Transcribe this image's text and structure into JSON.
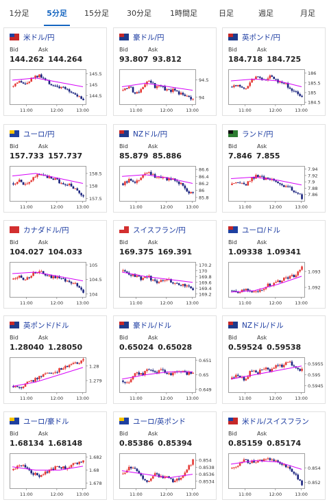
{
  "tabs": [
    {
      "label": "1分足",
      "active": false
    },
    {
      "label": "5分足",
      "active": true
    },
    {
      "label": "15分足",
      "active": false
    },
    {
      "label": "30分足",
      "active": false
    },
    {
      "label": "1時間足",
      "active": false
    },
    {
      "label": "日足",
      "active": false
    },
    {
      "label": "週足",
      "active": false
    },
    {
      "label": "月足",
      "active": false
    }
  ],
  "labels": {
    "bid": "Bid",
    "ask": "Ask"
  },
  "colors": {
    "up": "#e53935",
    "down": "#1a237e",
    "ma": "#d500f9",
    "accent": "#1565c0"
  },
  "cards": [
    {
      "pair": "米ドル/円",
      "flag": {
        "big": "#c62828",
        "small": "#1e40a0"
      },
      "bid": "144.262",
      "ask": "144.264",
      "chart": {
        "xticks": [
          "11:00",
          "12:00",
          "13:00"
        ],
        "yticks": [
          "145.5",
          "145",
          "144.5"
        ],
        "ylim": [
          144.1,
          145.7
        ],
        "trend": [
          144.9,
          145.1,
          145.0,
          145.3,
          145.4,
          145.2,
          145.0,
          144.9,
          144.8,
          144.7,
          144.5,
          144.3
        ],
        "ma": [
          145.2,
          145.3,
          145.1,
          144.9
        ]
      }
    },
    {
      "pair": "豪ドル/円",
      "flag": {
        "big": "#1e3a8a",
        "small": "#c62828"
      },
      "bid": "93.807",
      "ask": "93.812",
      "chart": {
        "xticks": [
          "11:00",
          "12:00",
          "13:00"
        ],
        "yticks": [
          "94.5",
          "94"
        ],
        "ylim": [
          93.8,
          94.8
        ],
        "trend": [
          94.2,
          94.3,
          94.1,
          94.2,
          94.5,
          94.3,
          94.3,
          94.2,
          94.2,
          94.1,
          94.0,
          93.9
        ],
        "ma": [
          94.3,
          94.4,
          94.3,
          94.2
        ]
      }
    },
    {
      "pair": "英ポンド/円",
      "flag": {
        "big": "#1e3a8a",
        "small": "#c62828"
      },
      "bid": "184.718",
      "ask": "184.725",
      "chart": {
        "xticks": [
          "11:00",
          "12:00",
          "13:00"
        ],
        "yticks": [
          "186",
          "185.5",
          "185",
          "184.5"
        ],
        "ylim": [
          184.4,
          186.2
        ],
        "trend": [
          185.3,
          185.4,
          185.2,
          185.6,
          185.8,
          185.7,
          185.8,
          185.6,
          185.5,
          185.3,
          185.0,
          184.7
        ],
        "ma": [
          185.6,
          185.7,
          185.6,
          185.3
        ]
      }
    },
    {
      "pair": "ユーロ/円",
      "flag": {
        "big": "#1e40a0",
        "small": "#f5c400"
      },
      "bid": "157.733",
      "ask": "157.737",
      "chart": {
        "xticks": [
          "11:00",
          "12:00",
          "13:00"
        ],
        "yticks": [
          "158.5",
          "158",
          "157.5"
        ],
        "ylim": [
          157.4,
          158.8
        ],
        "trend": [
          158.1,
          158.2,
          158.0,
          158.3,
          158.5,
          158.4,
          158.3,
          158.2,
          158.1,
          158.0,
          157.8,
          157.6
        ],
        "ma": [
          158.4,
          158.5,
          158.3,
          158.1
        ]
      }
    },
    {
      "pair": "NZドル/円",
      "flag": {
        "big": "#1e3a8a",
        "small": "#c62828"
      },
      "bid": "85.879",
      "ask": "85.886",
      "chart": {
        "xticks": [
          "11:00",
          "12:00",
          "13:00"
        ],
        "yticks": [
          "86.6",
          "86.4",
          "86.2",
          "86",
          "85.8"
        ],
        "ylim": [
          85.7,
          86.7
        ],
        "trend": [
          86.2,
          86.3,
          86.2,
          86.4,
          86.5,
          86.4,
          86.4,
          86.3,
          86.3,
          86.2,
          86.0,
          85.9
        ],
        "ma": [
          86.4,
          86.45,
          86.35,
          86.2
        ]
      }
    },
    {
      "pair": "ランド/円",
      "flag": {
        "big": "#2e7d32",
        "small": "#111111"
      },
      "bid": "7.846",
      "ask": "7.855",
      "chart": {
        "xticks": [
          "11:00",
          "12:00",
          "13:00"
        ],
        "yticks": [
          "7.94",
          "7.92",
          "7.9",
          "7.88",
          "7.86"
        ],
        "ylim": [
          7.84,
          7.95
        ],
        "trend": [
          7.89,
          7.9,
          7.89,
          7.91,
          7.92,
          7.91,
          7.91,
          7.9,
          7.89,
          7.88,
          7.87,
          7.85
        ],
        "ma": [
          7.91,
          7.915,
          7.905,
          7.89
        ]
      }
    },
    {
      "pair": "カナダドル/円",
      "flag": {
        "big": "#d32f2f",
        "small": "#d32f2f"
      },
      "bid": "104.027",
      "ask": "104.033",
      "chart": {
        "xticks": [
          "11:00",
          "12:00",
          "13:00"
        ],
        "yticks": [
          "105",
          "104.5",
          "104"
        ],
        "ylim": [
          103.9,
          105.1
        ],
        "trend": [
          104.5,
          104.6,
          104.5,
          104.7,
          104.8,
          104.7,
          104.6,
          104.6,
          104.5,
          104.4,
          104.3,
          104.1
        ],
        "ma": [
          104.7,
          104.75,
          104.6,
          104.45
        ]
      }
    },
    {
      "pair": "スイスフラン/円",
      "flag": {
        "big": "#d32f2f",
        "small": "#ffffff"
      },
      "bid": "169.375",
      "ask": "169.391",
      "chart": {
        "xticks": [
          "11:00",
          "12:00",
          "13:00"
        ],
        "yticks": [
          "170.2",
          "170",
          "169.8",
          "169.6",
          "169.4",
          "169.2"
        ],
        "ylim": [
          169.1,
          170.3
        ],
        "trend": [
          170.0,
          169.9,
          169.8,
          169.7,
          169.8,
          169.6,
          169.7,
          169.7,
          169.6,
          169.5,
          169.5,
          169.3
        ],
        "ma": [
          169.95,
          169.8,
          169.7,
          169.6
        ]
      }
    },
    {
      "pair": "ユーロ/ドル",
      "flag": {
        "big": "#1e40a0",
        "small": "#c62828"
      },
      "bid": "1.09338",
      "ask": "1.09341",
      "chart": {
        "xticks": [
          "11:00",
          "12:00",
          "13:00"
        ],
        "yticks": [
          "1.093",
          "1.092"
        ],
        "ylim": [
          1.0914,
          1.0936
        ],
        "trend": [
          1.0918,
          1.0917,
          1.0919,
          1.0918,
          1.0917,
          1.092,
          1.0922,
          1.0923,
          1.0925,
          1.0926,
          1.0928,
          1.0934
        ],
        "ma": [
          1.0917,
          1.0918,
          1.0922,
          1.0927
        ]
      }
    },
    {
      "pair": "英ポンド/ドル",
      "flag": {
        "big": "#1e3a8a",
        "small": "#c62828"
      },
      "bid": "1.28040",
      "ask": "1.28050",
      "chart": {
        "xticks": [
          "11:00",
          "12:00",
          "13:00"
        ],
        "yticks": [
          "1.28",
          "1.279"
        ],
        "ylim": [
          1.2782,
          1.2806
        ],
        "trend": [
          1.2786,
          1.2785,
          1.2788,
          1.279,
          1.2792,
          1.2795,
          1.2794,
          1.2797,
          1.2799,
          1.28,
          1.2802,
          1.2804
        ],
        "ma": [
          1.2786,
          1.2789,
          1.2794,
          1.2799
        ]
      }
    },
    {
      "pair": "豪ドル/ドル",
      "flag": {
        "big": "#1e3a8a",
        "small": "#c62828"
      },
      "bid": "0.65024",
      "ask": "0.65028",
      "chart": {
        "xticks": [
          "11:00",
          "12:00",
          "13:00"
        ],
        "yticks": [
          "0.651",
          "0.65",
          "0.649"
        ],
        "ylim": [
          0.6488,
          0.6512
        ],
        "trend": [
          0.6496,
          0.6494,
          0.6502,
          0.65,
          0.6504,
          0.6502,
          0.6503,
          0.65,
          0.6501,
          0.6502,
          0.6501,
          0.6502
        ],
        "ma": [
          0.6497,
          0.65,
          0.6502,
          0.6502
        ]
      }
    },
    {
      "pair": "NZドル/ドル",
      "flag": {
        "big": "#1e3a8a",
        "small": "#c62828"
      },
      "bid": "0.59524",
      "ask": "0.59538",
      "chart": {
        "xticks": [
          "11:00",
          "12:00",
          "13:00"
        ],
        "yticks": [
          "0.5955",
          "0.595",
          "0.5945"
        ],
        "ylim": [
          0.5942,
          0.5958
        ],
        "trend": [
          0.5948,
          0.595,
          0.5947,
          0.5952,
          0.5951,
          0.5953,
          0.5952,
          0.5955,
          0.5954,
          0.5956,
          0.5953,
          0.5952
        ],
        "ma": [
          0.5948,
          0.595,
          0.5952,
          0.5954
        ]
      }
    },
    {
      "pair": "ユーロ/豪ドル",
      "flag": {
        "big": "#1e40a0",
        "small": "#f5c400"
      },
      "bid": "1.68134",
      "ask": "1.68148",
      "chart": {
        "xticks": [
          "11:00",
          "12:00",
          "13:00"
        ],
        "yticks": [
          "1.682",
          "1.68",
          "1.678"
        ],
        "ylim": [
          1.6772,
          1.6826
        ],
        "trend": [
          1.68,
          1.681,
          1.6803,
          1.6796,
          1.679,
          1.6795,
          1.68,
          1.6806,
          1.6803,
          1.6808,
          1.681,
          1.6813
        ],
        "ma": [
          1.6805,
          1.68,
          1.68,
          1.6806
        ]
      }
    },
    {
      "pair": "ユーロ/英ポンド",
      "flag": {
        "big": "#1e40a0",
        "small": "#f5c400"
      },
      "bid": "0.85386",
      "ask": "0.85394",
      "chart": {
        "xticks": [
          "11:00",
          "12:00",
          "13:00"
        ],
        "yticks": [
          "0.854",
          "0.8538",
          "0.8536",
          "0.8534"
        ],
        "ylim": [
          0.8532,
          0.8542
        ],
        "trend": [
          0.8536,
          0.8538,
          0.8537,
          0.8535,
          0.8534,
          0.8536,
          0.8535,
          0.8535,
          0.8534,
          0.8535,
          0.8537,
          0.854
        ],
        "ma": [
          0.8537,
          0.8536,
          0.8535,
          0.8536
        ]
      }
    },
    {
      "pair": "米ドル/スイスフラン",
      "flag": {
        "big": "#c62828",
        "small": "#1e40a0"
      },
      "bid": "0.85159",
      "ask": "0.85174",
      "chart": {
        "xticks": [
          "11:00",
          "12:00",
          "13:00"
        ],
        "yticks": [
          "0.854",
          "0.852"
        ],
        "ylim": [
          0.8512,
          0.856
        ],
        "trend": [
          0.854,
          0.8545,
          0.855,
          0.8548,
          0.855,
          0.8552,
          0.8551,
          0.8548,
          0.8545,
          0.854,
          0.853,
          0.8518
        ],
        "ma": [
          0.8545,
          0.855,
          0.8548,
          0.8538
        ]
      }
    }
  ]
}
